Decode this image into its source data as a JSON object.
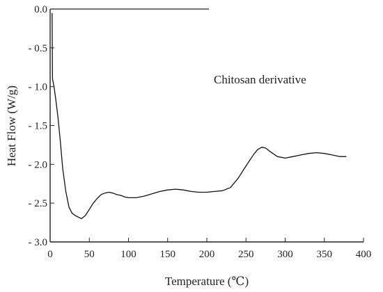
{
  "chart_data": {
    "type": "line",
    "title": "",
    "xlabel": "Temperature (℃)",
    "ylabel": "Heat Flow (W/g)",
    "xlim": [
      0,
      400
    ],
    "ylim": [
      -3.0,
      0.0
    ],
    "xticks": [
      0,
      50,
      100,
      150,
      200,
      250,
      300,
      350,
      400
    ],
    "xtick_labels": [
      "0",
      "50",
      "100",
      "150",
      "200",
      "250",
      "300",
      "350",
      "400"
    ],
    "yticks": [
      0.0,
      -0.5,
      -1.0,
      -1.5,
      -2.0,
      -2.5,
      -3.0
    ],
    "ytick_labels": [
      "0.0",
      "- 0.5",
      "- 1.0",
      "- 1.5",
      "- 2.0",
      "- 2.5",
      "- 3.0"
    ],
    "grid": false,
    "legend": "none",
    "annotations": [
      "Chitosan derivative"
    ],
    "line_color": "#111111",
    "series": [
      {
        "x": [
          2.5,
          3,
          4,
          5,
          7,
          10,
          13,
          16,
          20,
          24,
          28,
          32,
          36,
          40,
          45,
          50,
          55,
          60,
          65,
          70,
          75,
          80,
          85,
          90,
          95,
          100,
          110,
          120,
          130,
          140,
          150,
          160,
          170,
          180,
          190,
          200,
          210,
          220,
          230,
          240,
          250,
          260,
          265,
          270,
          275,
          280,
          290,
          300,
          310,
          320,
          330,
          340,
          350,
          360,
          370,
          378
        ],
        "y": [
          -0.05,
          -0.9,
          -0.95,
          -1.0,
          -1.15,
          -1.4,
          -1.7,
          -2.05,
          -2.35,
          -2.55,
          -2.63,
          -2.66,
          -2.68,
          -2.7,
          -2.66,
          -2.58,
          -2.5,
          -2.44,
          -2.39,
          -2.37,
          -2.36,
          -2.37,
          -2.39,
          -2.4,
          -2.42,
          -2.43,
          -2.43,
          -2.41,
          -2.38,
          -2.35,
          -2.33,
          -2.32,
          -2.33,
          -2.35,
          -2.36,
          -2.36,
          -2.35,
          -2.34,
          -2.3,
          -2.18,
          -2.02,
          -1.87,
          -1.81,
          -1.78,
          -1.79,
          -1.83,
          -1.9,
          -1.92,
          -1.9,
          -1.88,
          -1.86,
          -1.85,
          -1.86,
          -1.88,
          -1.9,
          -1.9
        ]
      }
    ]
  }
}
